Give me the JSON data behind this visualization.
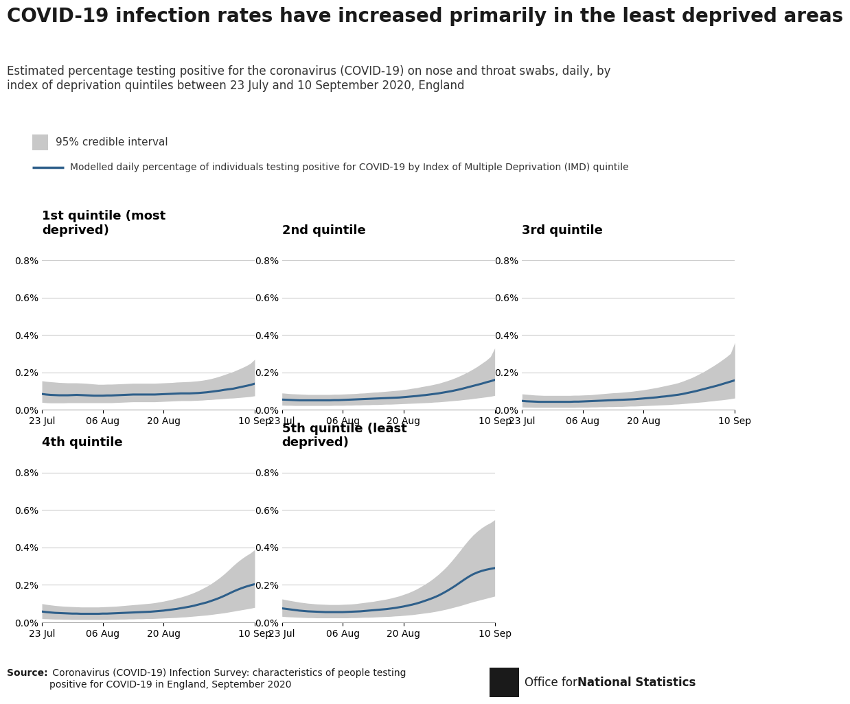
{
  "title": "COVID-19 infection rates have increased primarily in the least deprived areas",
  "subtitle": "Estimated percentage testing positive for the coronavirus (COVID-19) on nose and throat swabs, daily, by\nindex of deprivation quintiles between 23 July and 10 September 2020, England",
  "legend_ci": "95% credible interval",
  "legend_line": "Modelled daily percentage of individuals testing positive for COVID-19 by Index of Multiple Deprivation (IMD) quintile",
  "source_bold": "Source:",
  "source_text": " Coronavirus (COVID-19) Infection Survey: characteristics of people testing\npositive for COVID-19 in England, September 2020",
  "subplot_titles": [
    "1st quintile (most\ndeprived)",
    "2nd quintile",
    "3rd quintile",
    "4th quintile",
    "5th quintile (least\ndeprived)"
  ],
  "x_tick_labels": [
    "23 Jul",
    "06 Aug",
    "20 Aug",
    "10 Sep"
  ],
  "x_tick_positions": [
    0,
    14,
    28,
    49
  ],
  "ylim": [
    0.0,
    0.009
  ],
  "yticks": [
    0.0,
    0.002,
    0.004,
    0.006,
    0.008
  ],
  "ytick_labels": [
    "0.0%",
    "0.2%",
    "0.4%",
    "0.6%",
    "0.8%"
  ],
  "line_color": "#2e5f8a",
  "ci_color": "#c8c8c8",
  "background_color": "#ffffff",
  "title_fontsize": 20,
  "subtitle_fontsize": 12,
  "subplot_title_fontsize": 13,
  "tick_fontsize": 10,
  "legend_fontsize": 11,
  "n_points": 50,
  "panels": {
    "q1": {
      "line": [
        0.00085,
        0.00082,
        0.0008,
        0.00079,
        0.00078,
        0.00078,
        0.00078,
        0.00079,
        0.0008,
        0.00079,
        0.00078,
        0.00077,
        0.00076,
        0.00076,
        0.00076,
        0.00077,
        0.00077,
        0.00078,
        0.00079,
        0.0008,
        0.00081,
        0.00082,
        0.00082,
        0.00082,
        0.00082,
        0.00082,
        0.00082,
        0.00083,
        0.00084,
        0.00085,
        0.00086,
        0.00087,
        0.00088,
        0.00088,
        0.00088,
        0.00089,
        0.0009,
        0.00092,
        0.00094,
        0.00097,
        0.001,
        0.00103,
        0.00107,
        0.0011,
        0.00113,
        0.00118,
        0.00123,
        0.00128,
        0.00133,
        0.0014
      ],
      "upper": [
        0.00155,
        0.00152,
        0.0015,
        0.00148,
        0.00146,
        0.00145,
        0.00144,
        0.00144,
        0.00144,
        0.00143,
        0.00142,
        0.0014,
        0.00138,
        0.00136,
        0.00136,
        0.00137,
        0.00137,
        0.00138,
        0.00139,
        0.0014,
        0.00141,
        0.00142,
        0.00142,
        0.00142,
        0.00142,
        0.00142,
        0.00142,
        0.00143,
        0.00144,
        0.00145,
        0.00146,
        0.00148,
        0.00149,
        0.0015,
        0.00151,
        0.00153,
        0.00155,
        0.00158,
        0.00162,
        0.00167,
        0.00173,
        0.0018,
        0.00188,
        0.00196,
        0.00204,
        0.00214,
        0.00224,
        0.00235,
        0.00248,
        0.0027
      ],
      "lower": [
        0.0004,
        0.00038,
        0.00037,
        0.00037,
        0.00037,
        0.00037,
        0.00038,
        0.00038,
        0.00038,
        0.00038,
        0.00038,
        0.00038,
        0.00038,
        0.00038,
        0.00038,
        0.00038,
        0.00038,
        0.00039,
        0.0004,
        0.00041,
        0.00042,
        0.00043,
        0.00043,
        0.00043,
        0.00043,
        0.00043,
        0.00043,
        0.00044,
        0.00045,
        0.00046,
        0.00047,
        0.00048,
        0.00049,
        0.00049,
        0.00049,
        0.0005,
        0.00051,
        0.00052,
        0.00054,
        0.00055,
        0.00057,
        0.00058,
        0.0006,
        0.00062,
        0.00063,
        0.00065,
        0.00067,
        0.00069,
        0.00071,
        0.00075
      ]
    },
    "q2": {
      "line": [
        0.00055,
        0.00054,
        0.00053,
        0.00052,
        0.00051,
        0.00051,
        0.00051,
        0.00051,
        0.00051,
        0.00051,
        0.00051,
        0.00051,
        0.00052,
        0.00052,
        0.00053,
        0.00054,
        0.00055,
        0.00056,
        0.00057,
        0.00058,
        0.00059,
        0.0006,
        0.00061,
        0.00062,
        0.00063,
        0.00064,
        0.00065,
        0.00066,
        0.00068,
        0.0007,
        0.00072,
        0.00074,
        0.00077,
        0.00079,
        0.00082,
        0.00085,
        0.00088,
        0.00092,
        0.00096,
        0.001,
        0.00105,
        0.0011,
        0.00116,
        0.00122,
        0.00128,
        0.00134,
        0.0014,
        0.00147,
        0.00153,
        0.0016
      ],
      "upper": [
        0.0009,
        0.00088,
        0.00086,
        0.00085,
        0.00084,
        0.00083,
        0.00082,
        0.00082,
        0.00082,
        0.00082,
        0.00082,
        0.00082,
        0.00083,
        0.00083,
        0.00084,
        0.00085,
        0.00086,
        0.00087,
        0.00089,
        0.0009,
        0.00092,
        0.00094,
        0.00095,
        0.00097,
        0.00099,
        0.00101,
        0.00103,
        0.00105,
        0.00108,
        0.00111,
        0.00115,
        0.00118,
        0.00123,
        0.00127,
        0.00131,
        0.00136,
        0.00141,
        0.00148,
        0.00155,
        0.00163,
        0.00172,
        0.00182,
        0.00193,
        0.00205,
        0.00218,
        0.00232,
        0.00248,
        0.00264,
        0.00284,
        0.0033
      ],
      "lower": [
        0.00025,
        0.00024,
        0.00024,
        0.00023,
        0.00023,
        0.00023,
        0.00023,
        0.00023,
        0.00023,
        0.00023,
        0.00023,
        0.00023,
        0.00024,
        0.00024,
        0.00024,
        0.00025,
        0.00025,
        0.00026,
        0.00026,
        0.00027,
        0.00027,
        0.00028,
        0.00028,
        0.00029,
        0.0003,
        0.0003,
        0.00031,
        0.00032,
        0.00033,
        0.00034,
        0.00035,
        0.00036,
        0.00037,
        0.00038,
        0.00039,
        0.00041,
        0.00042,
        0.00044,
        0.00046,
        0.00048,
        0.0005,
        0.00052,
        0.00055,
        0.00057,
        0.0006,
        0.00063,
        0.00066,
        0.00069,
        0.00072,
        0.00077
      ]
    },
    "q3": {
      "line": [
        0.00048,
        0.00046,
        0.00045,
        0.00044,
        0.00043,
        0.00043,
        0.00043,
        0.00043,
        0.00043,
        0.00043,
        0.00043,
        0.00043,
        0.00044,
        0.00044,
        0.00045,
        0.00046,
        0.00047,
        0.00048,
        0.00049,
        0.0005,
        0.00051,
        0.00052,
        0.00053,
        0.00054,
        0.00055,
        0.00056,
        0.00057,
        0.00059,
        0.00061,
        0.00063,
        0.00065,
        0.00067,
        0.0007,
        0.00072,
        0.00075,
        0.00078,
        0.00081,
        0.00085,
        0.0009,
        0.00095,
        0.001,
        0.00106,
        0.00112,
        0.00118,
        0.00124,
        0.0013,
        0.00137,
        0.00144,
        0.00151,
        0.00158
      ],
      "upper": [
        0.00085,
        0.00083,
        0.00081,
        0.00079,
        0.00078,
        0.00077,
        0.00077,
        0.00077,
        0.00077,
        0.00077,
        0.00077,
        0.00077,
        0.00078,
        0.00078,
        0.00079,
        0.0008,
        0.00081,
        0.00083,
        0.00085,
        0.00087,
        0.00089,
        0.00091,
        0.00092,
        0.00094,
        0.00096,
        0.00098,
        0.00101,
        0.00104,
        0.00107,
        0.00111,
        0.00115,
        0.00119,
        0.00124,
        0.00129,
        0.00134,
        0.00139,
        0.00145,
        0.00153,
        0.00162,
        0.00171,
        0.00182,
        0.00194,
        0.00206,
        0.0022,
        0.00234,
        0.00249,
        0.00265,
        0.00282,
        0.00301,
        0.0036
      ],
      "lower": [
        0.00015,
        0.00014,
        0.00014,
        0.00013,
        0.00013,
        0.00013,
        0.00013,
        0.00013,
        0.00013,
        0.00013,
        0.00013,
        0.00013,
        0.00013,
        0.00014,
        0.00014,
        0.00014,
        0.00015,
        0.00015,
        0.00016,
        0.00016,
        0.00017,
        0.00017,
        0.00018,
        0.00018,
        0.00019,
        0.0002,
        0.0002,
        0.00021,
        0.00022,
        0.00023,
        0.00024,
        0.00025,
        0.00026,
        0.00027,
        0.00028,
        0.0003,
        0.00031,
        0.00033,
        0.00035,
        0.00037,
        0.00039,
        0.00041,
        0.00043,
        0.00046,
        0.00048,
        0.00051,
        0.00053,
        0.00056,
        0.00059,
        0.00063
      ]
    },
    "q4": {
      "line": [
        0.00058,
        0.00055,
        0.00053,
        0.00051,
        0.0005,
        0.00049,
        0.00048,
        0.00047,
        0.00047,
        0.00046,
        0.00046,
        0.00046,
        0.00046,
        0.00046,
        0.00047,
        0.00047,
        0.00048,
        0.00049,
        0.0005,
        0.00051,
        0.00052,
        0.00053,
        0.00054,
        0.00055,
        0.00056,
        0.00057,
        0.00059,
        0.00061,
        0.00063,
        0.00066,
        0.00069,
        0.00072,
        0.00076,
        0.0008,
        0.00084,
        0.00089,
        0.00095,
        0.00101,
        0.00107,
        0.00115,
        0.00123,
        0.00132,
        0.00142,
        0.00153,
        0.00164,
        0.00174,
        0.00183,
        0.00191,
        0.00198,
        0.00204
      ],
      "upper": [
        0.001,
        0.00096,
        0.00093,
        0.0009,
        0.00088,
        0.00086,
        0.00085,
        0.00084,
        0.00083,
        0.00082,
        0.00082,
        0.00082,
        0.00082,
        0.00082,
        0.00083,
        0.00084,
        0.00085,
        0.00086,
        0.00088,
        0.0009,
        0.00092,
        0.00094,
        0.00096,
        0.00098,
        0.001,
        0.00102,
        0.00105,
        0.00109,
        0.00113,
        0.00118,
        0.00123,
        0.00129,
        0.00135,
        0.00142,
        0.0015,
        0.00159,
        0.00169,
        0.00181,
        0.00193,
        0.00207,
        0.00223,
        0.0024,
        0.00259,
        0.0028,
        0.00302,
        0.00322,
        0.0034,
        0.00356,
        0.0037,
        0.00388
      ],
      "lower": [
        0.0002,
        0.00019,
        0.00018,
        0.00017,
        0.00017,
        0.00016,
        0.00016,
        0.00015,
        0.00015,
        0.00015,
        0.00015,
        0.00015,
        0.00015,
        0.00015,
        0.00015,
        0.00015,
        0.00016,
        0.00016,
        0.00017,
        0.00017,
        0.00018,
        0.00018,
        0.00019,
        0.00019,
        0.0002,
        0.0002,
        0.00021,
        0.00022,
        0.00023,
        0.00024,
        0.00025,
        0.00026,
        0.00028,
        0.00029,
        0.00031,
        0.00033,
        0.00035,
        0.00037,
        0.00039,
        0.00042,
        0.00045,
        0.00048,
        0.00051,
        0.00055,
        0.00059,
        0.00063,
        0.00067,
        0.00071,
        0.00075,
        0.0008
      ]
    },
    "q5": {
      "line": [
        0.00075,
        0.00072,
        0.00069,
        0.00066,
        0.00063,
        0.00061,
        0.00059,
        0.00058,
        0.00057,
        0.00056,
        0.00055,
        0.00055,
        0.00055,
        0.00055,
        0.00055,
        0.00056,
        0.00057,
        0.00058,
        0.00059,
        0.00061,
        0.00063,
        0.00065,
        0.00067,
        0.00069,
        0.00071,
        0.00074,
        0.00077,
        0.00081,
        0.00085,
        0.0009,
        0.00095,
        0.00101,
        0.00108,
        0.00116,
        0.00124,
        0.00133,
        0.00143,
        0.00155,
        0.00168,
        0.00182,
        0.00197,
        0.00213,
        0.00229,
        0.00244,
        0.00257,
        0.00267,
        0.00275,
        0.00281,
        0.00286,
        0.0029
      ],
      "upper": [
        0.00125,
        0.0012,
        0.00116,
        0.00112,
        0.00108,
        0.00105,
        0.00102,
        0.001,
        0.00098,
        0.00097,
        0.00096,
        0.00095,
        0.00095,
        0.00095,
        0.00096,
        0.00097,
        0.00098,
        0.001,
        0.00103,
        0.00106,
        0.00109,
        0.00112,
        0.00116,
        0.0012,
        0.00124,
        0.00129,
        0.00135,
        0.00141,
        0.00149,
        0.00157,
        0.00167,
        0.00178,
        0.00191,
        0.00205,
        0.0022,
        0.00237,
        0.00256,
        0.00277,
        0.003,
        0.00326,
        0.00354,
        0.00383,
        0.00413,
        0.00441,
        0.00466,
        0.00487,
        0.00505,
        0.0052,
        0.00532,
        0.00548
      ],
      "lower": [
        0.00032,
        0.0003,
        0.00029,
        0.00028,
        0.00027,
        0.00026,
        0.00025,
        0.00025,
        0.00024,
        0.00024,
        0.00024,
        0.00024,
        0.00024,
        0.00024,
        0.00024,
        0.00024,
        0.00025,
        0.00025,
        0.00026,
        0.00027,
        0.00027,
        0.00028,
        0.00029,
        0.0003,
        0.00031,
        0.00032,
        0.00034,
        0.00035,
        0.00037,
        0.00039,
        0.00041,
        0.00044,
        0.00047,
        0.0005,
        0.00053,
        0.00057,
        0.00061,
        0.00066,
        0.00071,
        0.00077,
        0.00083,
        0.00089,
        0.00096,
        0.00103,
        0.0011,
        0.00116,
        0.00122,
        0.00128,
        0.00134,
        0.0014
      ]
    }
  }
}
